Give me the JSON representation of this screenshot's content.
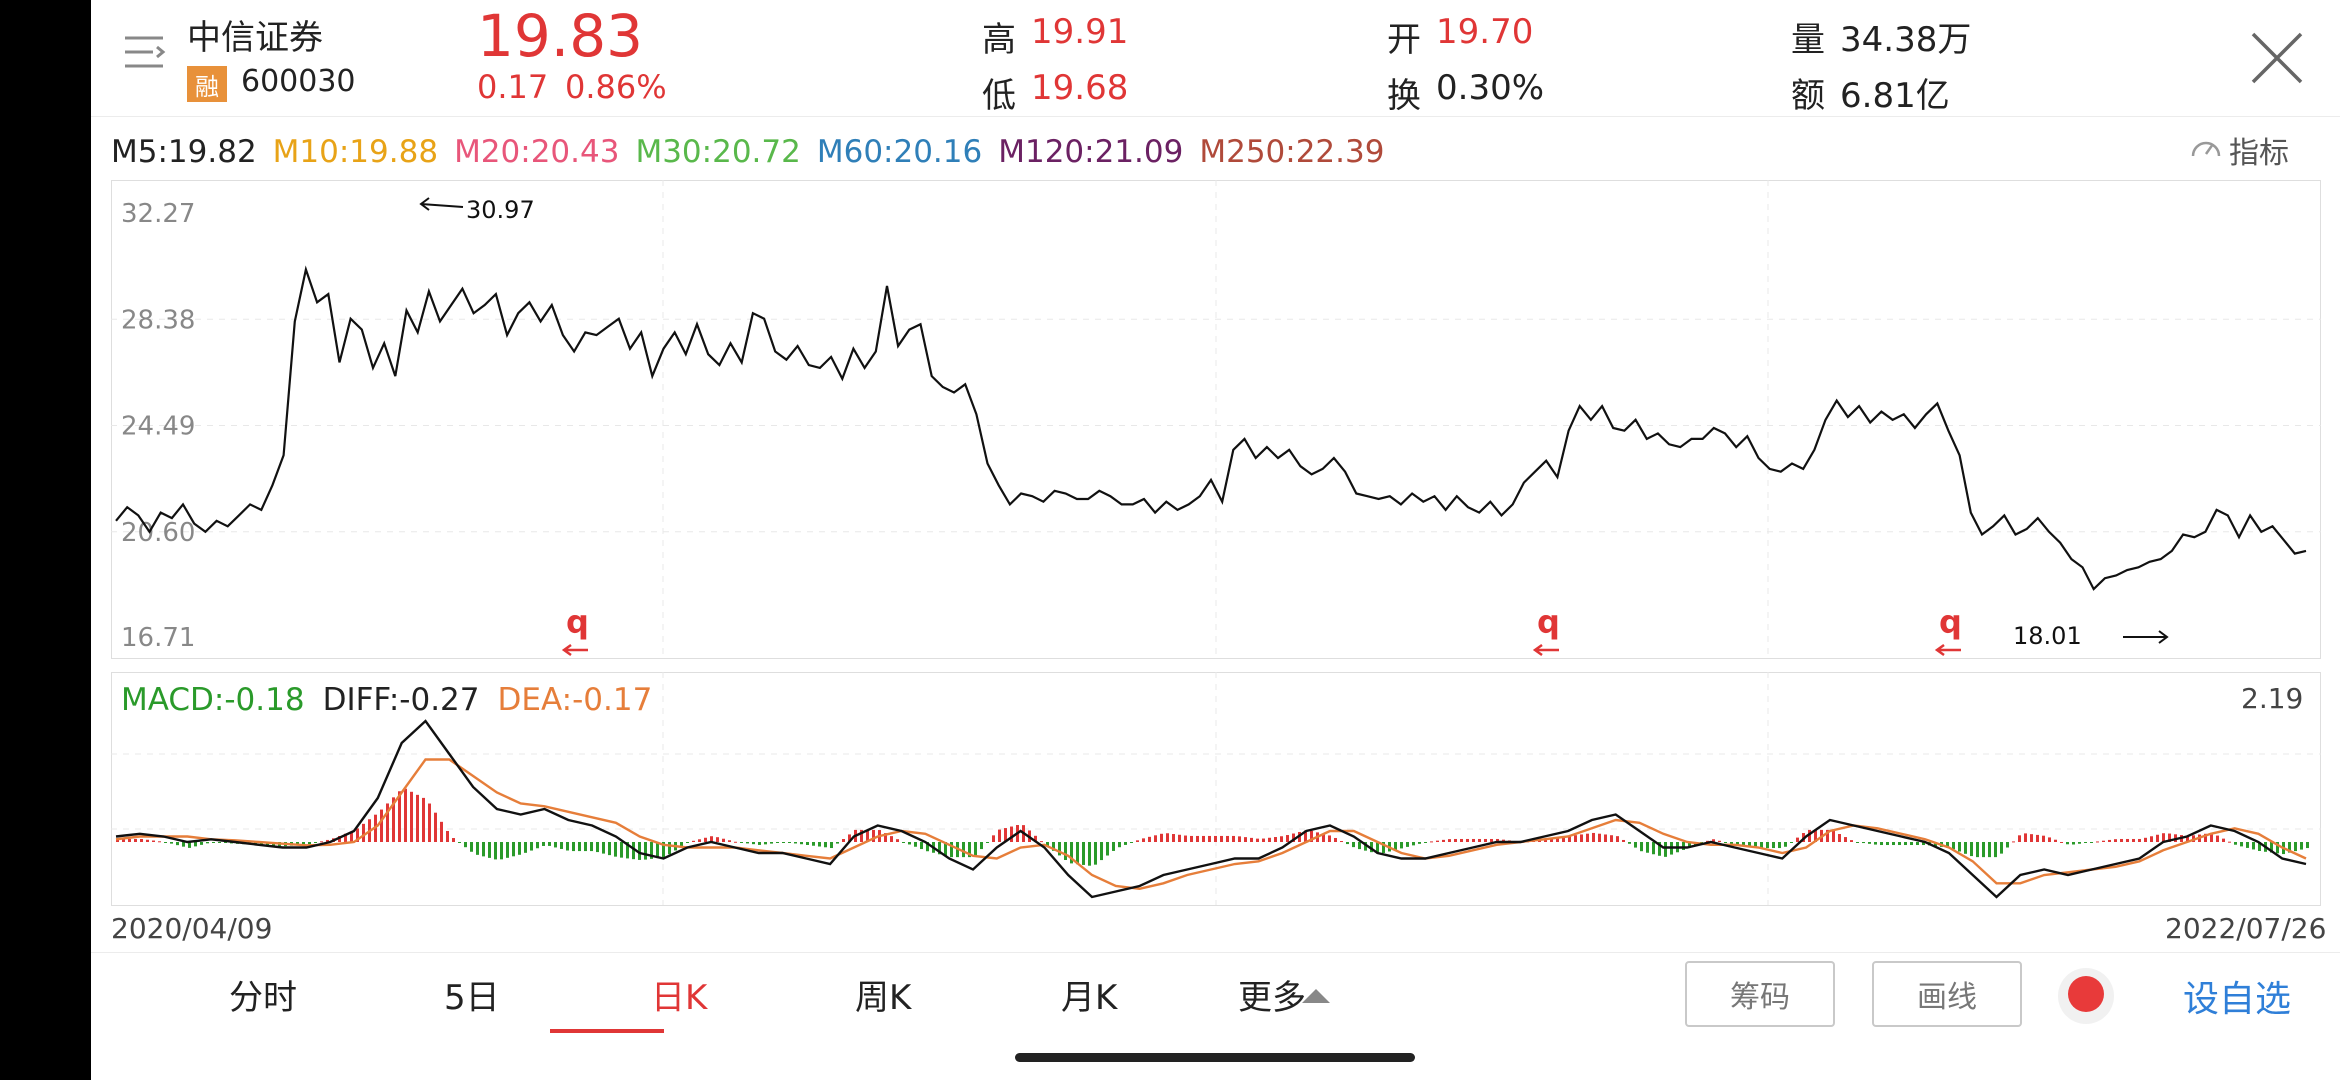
{
  "header": {
    "stock_name": "中信证券",
    "badge": "融",
    "stock_code": "600030",
    "price": "19.83",
    "change": "0.17",
    "change_pct": "0.86%",
    "high_label": "高",
    "high_value": "19.91",
    "low_label": "低",
    "low_value": "19.68",
    "open_label": "开",
    "open_value": "19.70",
    "turnover_label": "换",
    "turnover_value": "0.30%",
    "volume_label": "量",
    "volume_value": "34.38万",
    "amount_label": "额",
    "amount_value": "6.81亿"
  },
  "ma_legend": [
    {
      "text": "M5:19.82",
      "color": "#222222"
    },
    {
      "text": "M10:19.88",
      "color": "#e8a317"
    },
    {
      "text": "M20:20.43",
      "color": "#e8567a"
    },
    {
      "text": "M30:20.72",
      "color": "#59b84b"
    },
    {
      "text": "M60:20.16",
      "color": "#2f7fb8"
    },
    {
      "text": "M120:21.09",
      "color": "#6b2163"
    },
    {
      "text": "M250:22.39",
      "color": "#b04a3a"
    }
  ],
  "indicator_button": "指标",
  "macd_legend": {
    "macd": "MACD:-0.18",
    "macd_color": "#2a9a2a",
    "diff": "DIFF:-0.27",
    "diff_color": "#222222",
    "dea": "DEA:-0.17",
    "dea_color": "#e67e3a",
    "max_label": "2.19"
  },
  "dates": {
    "start": "2020/04/09",
    "end": "2022/07/26"
  },
  "tabs": [
    "分时",
    "5日",
    "日K",
    "周K",
    "月K",
    "更多"
  ],
  "active_tab": "日K",
  "buttons": {
    "chips": "筹码",
    "draw": "画线",
    "add_watch": "设自选"
  },
  "colors": {
    "up": "#e03636",
    "down": "#2a9a2a",
    "price_line": "#111111",
    "dea_line": "#e67e3a"
  },
  "chart_data": {
    "type": "line",
    "y_ticks": [
      "32.27",
      "28.38",
      "24.49",
      "20.60",
      "16.71"
    ],
    "ylim": [
      16.71,
      32.27
    ],
    "x_range": [
      "2020/04/09",
      "2022/07/26"
    ],
    "annotations": {
      "max_value": "30.97",
      "min_value": "18.01",
      "marker": "q"
    },
    "price": [
      21.0,
      21.5,
      21.2,
      20.6,
      21.3,
      21.1,
      21.6,
      20.9,
      20.6,
      21.0,
      20.8,
      21.2,
      21.6,
      21.4,
      22.3,
      23.4,
      28.3,
      30.2,
      29.0,
      29.3,
      26.8,
      28.4,
      28.0,
      26.6,
      27.5,
      26.3,
      28.7,
      27.9,
      29.4,
      28.3,
      28.9,
      29.5,
      28.6,
      28.9,
      29.3,
      27.8,
      28.6,
      29.0,
      28.3,
      28.9,
      27.8,
      27.2,
      27.9,
      27.8,
      28.1,
      28.4,
      27.3,
      27.9,
      26.3,
      27.3,
      27.9,
      27.1,
      28.2,
      27.1,
      26.7,
      27.5,
      26.8,
      28.6,
      28.4,
      27.2,
      26.9,
      27.4,
      26.7,
      26.6,
      27.0,
      26.2,
      27.3,
      26.6,
      27.2,
      29.6,
      27.4,
      28.0,
      28.2,
      26.3,
      25.9,
      25.7,
      26.0,
      24.9,
      23.1,
      22.3,
      21.6,
      22.0,
      21.9,
      21.7,
      22.1,
      22.0,
      21.8,
      21.8,
      22.1,
      21.9,
      21.6,
      21.6,
      21.8,
      21.3,
      21.7,
      21.4,
      21.6,
      21.9,
      22.5,
      21.7,
      23.6,
      24.0,
      23.3,
      23.7,
      23.3,
      23.6,
      23.0,
      22.7,
      22.9,
      23.3,
      22.8,
      22.0,
      21.9,
      21.8,
      21.9,
      21.6,
      22.0,
      21.7,
      21.9,
      21.4,
      21.9,
      21.5,
      21.3,
      21.7,
      21.2,
      21.6,
      22.4,
      22.8,
      23.2,
      22.6,
      24.3,
      25.2,
      24.7,
      25.2,
      24.4,
      24.3,
      24.7,
      24.0,
      24.2,
      23.8,
      23.7,
      24.0,
      24.0,
      24.4,
      24.2,
      23.7,
      24.1,
      23.3,
      22.9,
      22.8,
      23.1,
      22.9,
      23.6,
      24.7,
      25.4,
      24.8,
      25.2,
      24.6,
      25.0,
      24.7,
      24.9,
      24.4,
      24.9,
      25.3,
      24.3,
      23.4,
      21.3,
      20.5,
      20.8,
      21.2,
      20.5,
      20.7,
      21.1,
      20.6,
      20.2,
      19.6,
      19.3,
      18.5,
      18.9,
      19.0,
      19.2,
      19.3,
      19.5,
      19.6,
      19.9,
      20.5,
      20.4,
      20.6,
      21.4,
      21.2,
      20.4,
      21.2,
      20.6,
      20.8,
      20.3,
      19.8,
      19.9
    ],
    "diff": [
      0.1,
      0.15,
      0.1,
      0.0,
      0.05,
      0.0,
      -0.05,
      -0.1,
      -0.1,
      0.0,
      0.2,
      0.8,
      1.8,
      2.2,
      1.6,
      1.0,
      0.6,
      0.5,
      0.6,
      0.4,
      0.3,
      0.1,
      -0.2,
      -0.3,
      -0.1,
      0.0,
      -0.1,
      -0.2,
      -0.2,
      -0.3,
      -0.4,
      0.1,
      0.3,
      0.2,
      0.0,
      -0.3,
      -0.5,
      -0.1,
      0.2,
      -0.1,
      -0.6,
      -1.0,
      -0.9,
      -0.8,
      -0.6,
      -0.5,
      -0.4,
      -0.3,
      -0.3,
      -0.1,
      0.2,
      0.3,
      0.1,
      -0.2,
      -0.3,
      -0.3,
      -0.2,
      -0.1,
      0.0,
      0.0,
      0.1,
      0.2,
      0.4,
      0.5,
      0.2,
      -0.1,
      -0.1,
      0.0,
      -0.1,
      -0.2,
      -0.3,
      0.1,
      0.4,
      0.3,
      0.2,
      0.1,
      0.0,
      -0.2,
      -0.6,
      -1.0,
      -0.6,
      -0.5,
      -0.6,
      -0.5,
      -0.4,
      -0.3,
      0.0,
      0.1,
      0.3,
      0.2,
      0.0,
      -0.3,
      -0.4
    ],
    "dea": [
      0.05,
      0.1,
      0.1,
      0.1,
      0.05,
      0.03,
      0.0,
      -0.03,
      -0.06,
      -0.05,
      0.0,
      0.3,
      0.9,
      1.5,
      1.5,
      1.2,
      0.9,
      0.7,
      0.65,
      0.55,
      0.45,
      0.35,
      0.1,
      -0.05,
      -0.1,
      -0.1,
      -0.1,
      -0.15,
      -0.2,
      -0.25,
      -0.3,
      -0.1,
      0.1,
      0.2,
      0.15,
      -0.05,
      -0.25,
      -0.3,
      -0.1,
      -0.05,
      -0.25,
      -0.6,
      -0.8,
      -0.85,
      -0.75,
      -0.6,
      -0.5,
      -0.4,
      -0.35,
      -0.2,
      0.0,
      0.2,
      0.2,
      0.0,
      -0.2,
      -0.3,
      -0.25,
      -0.15,
      -0.05,
      0.0,
      0.05,
      0.1,
      0.25,
      0.4,
      0.35,
      0.15,
      0.0,
      -0.05,
      -0.05,
      -0.1,
      -0.2,
      -0.1,
      0.2,
      0.3,
      0.25,
      0.15,
      0.05,
      -0.1,
      -0.35,
      -0.75,
      -0.75,
      -0.6,
      -0.55,
      -0.5,
      -0.45,
      -0.35,
      -0.15,
      0.0,
      0.15,
      0.25,
      0.15,
      -0.1,
      -0.3
    ]
  }
}
